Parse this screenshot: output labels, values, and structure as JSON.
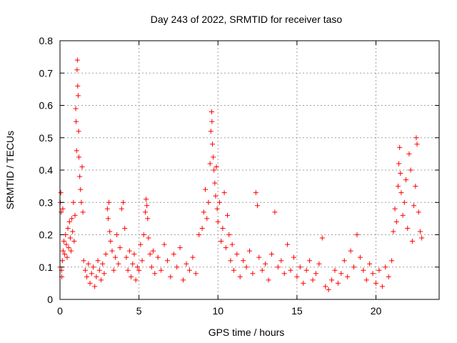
{
  "chart_data": {
    "type": "scatter",
    "title": "Day 243 of 2022, SRMTID for receiver taso",
    "xlabel": "GPS time / hours",
    "ylabel": "SRMTID / TECUs",
    "xlim": [
      0,
      24
    ],
    "ylim": [
      0,
      0.8
    ],
    "xticks": [
      0,
      5,
      10,
      15,
      20
    ],
    "yticks": [
      0,
      0.1,
      0.2,
      0.3,
      0.4,
      0.5,
      0.6,
      0.7,
      0.8
    ],
    "xtick_labels": [
      "0",
      "5",
      "10",
      "15",
      "20"
    ],
    "ytick_labels": [
      "0",
      "0.1",
      "0.2",
      "0.3",
      "0.4",
      "0.5",
      "0.6",
      "0.7",
      "0.8"
    ],
    "grid": true,
    "marker": "+",
    "marker_color": "#ff0000",
    "series": [
      {
        "name": "SRMTID",
        "points": [
          [
            0.0,
            0.1
          ],
          [
            0.02,
            0.3
          ],
          [
            0.05,
            0.33
          ],
          [
            0.08,
            0.27
          ],
          [
            0.1,
            0.09
          ],
          [
            0.12,
            0.07
          ],
          [
            0.15,
            0.12
          ],
          [
            0.18,
            0.28
          ],
          [
            0.2,
            0.15
          ],
          [
            0.25,
            0.18
          ],
          [
            0.3,
            0.14
          ],
          [
            0.35,
            0.2
          ],
          [
            0.4,
            0.17
          ],
          [
            0.45,
            0.13
          ],
          [
            0.5,
            0.22
          ],
          [
            0.55,
            0.16
          ],
          [
            0.6,
            0.24
          ],
          [
            0.65,
            0.19
          ],
          [
            0.7,
            0.15
          ],
          [
            0.75,
            0.25
          ],
          [
            0.8,
            0.21
          ],
          [
            0.85,
            0.3
          ],
          [
            0.9,
            0.18
          ],
          [
            0.95,
            0.26
          ],
          [
            1.0,
            0.59
          ],
          [
            1.02,
            0.55
          ],
          [
            1.05,
            0.46
          ],
          [
            1.08,
            0.71
          ],
          [
            1.1,
            0.74
          ],
          [
            1.12,
            0.66
          ],
          [
            1.15,
            0.63
          ],
          [
            1.18,
            0.52
          ],
          [
            1.2,
            0.44
          ],
          [
            1.25,
            0.38
          ],
          [
            1.3,
            0.34
          ],
          [
            1.35,
            0.3
          ],
          [
            1.4,
            0.41
          ],
          [
            1.45,
            0.27
          ],
          [
            1.5,
            0.12
          ],
          [
            1.6,
            0.09
          ],
          [
            1.7,
            0.07
          ],
          [
            1.8,
            0.11
          ],
          [
            1.9,
            0.05
          ],
          [
            2.0,
            0.08
          ],
          [
            2.1,
            0.1
          ],
          [
            2.2,
            0.04
          ],
          [
            2.3,
            0.07
          ],
          [
            2.4,
            0.12
          ],
          [
            2.5,
            0.09
          ],
          [
            2.6,
            0.06
          ],
          [
            2.7,
            0.11
          ],
          [
            2.8,
            0.08
          ],
          [
            2.9,
            0.14
          ],
          [
            3.0,
            0.28
          ],
          [
            3.05,
            0.25
          ],
          [
            3.1,
            0.3
          ],
          [
            3.15,
            0.21
          ],
          [
            3.2,
            0.18
          ],
          [
            3.3,
            0.15
          ],
          [
            3.4,
            0.09
          ],
          [
            3.5,
            0.13
          ],
          [
            3.6,
            0.2
          ],
          [
            3.7,
            0.11
          ],
          [
            3.8,
            0.16
          ],
          [
            3.9,
            0.28
          ],
          [
            4.0,
            0.3
          ],
          [
            4.1,
            0.22
          ],
          [
            4.2,
            0.13
          ],
          [
            4.3,
            0.09
          ],
          [
            4.4,
            0.15
          ],
          [
            4.5,
            0.07
          ],
          [
            4.6,
            0.11
          ],
          [
            4.7,
            0.14
          ],
          [
            4.8,
            0.06
          ],
          [
            4.9,
            0.1
          ],
          [
            5.0,
            0.09
          ],
          [
            5.1,
            0.17
          ],
          [
            5.2,
            0.12
          ],
          [
            5.3,
            0.2
          ],
          [
            5.4,
            0.27
          ],
          [
            5.45,
            0.31
          ],
          [
            5.5,
            0.29
          ],
          [
            5.55,
            0.25
          ],
          [
            5.6,
            0.19
          ],
          [
            5.7,
            0.14
          ],
          [
            5.8,
            0.1
          ],
          [
            5.9,
            0.15
          ],
          [
            6.0,
            0.08
          ],
          [
            6.2,
            0.13
          ],
          [
            6.4,
            0.09
          ],
          [
            6.6,
            0.17
          ],
          [
            6.8,
            0.12
          ],
          [
            7.0,
            0.07
          ],
          [
            7.2,
            0.14
          ],
          [
            7.4,
            0.1
          ],
          [
            7.6,
            0.16
          ],
          [
            7.8,
            0.06
          ],
          [
            8.0,
            0.11
          ],
          [
            8.2,
            0.09
          ],
          [
            8.4,
            0.13
          ],
          [
            8.6,
            0.08
          ],
          [
            8.8,
            0.2
          ],
          [
            9.0,
            0.22
          ],
          [
            9.1,
            0.27
          ],
          [
            9.2,
            0.34
          ],
          [
            9.3,
            0.25
          ],
          [
            9.4,
            0.3
          ],
          [
            9.5,
            0.42
          ],
          [
            9.55,
            0.52
          ],
          [
            9.6,
            0.58
          ],
          [
            9.62,
            0.55
          ],
          [
            9.65,
            0.48
          ],
          [
            9.7,
            0.44
          ],
          [
            9.75,
            0.4
          ],
          [
            9.8,
            0.36
          ],
          [
            9.85,
            0.32
          ],
          [
            9.9,
            0.41
          ],
          [
            9.95,
            0.28
          ],
          [
            10.0,
            0.24
          ],
          [
            10.1,
            0.3
          ],
          [
            10.2,
            0.18
          ],
          [
            10.3,
            0.22
          ],
          [
            10.4,
            0.33
          ],
          [
            10.5,
            0.16
          ],
          [
            10.6,
            0.26
          ],
          [
            10.7,
            0.2
          ],
          [
            10.8,
            0.12
          ],
          [
            10.9,
            0.17
          ],
          [
            11.0,
            0.09
          ],
          [
            11.2,
            0.14
          ],
          [
            11.4,
            0.07
          ],
          [
            11.6,
            0.12
          ],
          [
            11.8,
            0.1
          ],
          [
            12.0,
            0.15
          ],
          [
            12.2,
            0.08
          ],
          [
            12.4,
            0.33
          ],
          [
            12.5,
            0.29
          ],
          [
            12.6,
            0.13
          ],
          [
            12.8,
            0.09
          ],
          [
            13.0,
            0.11
          ],
          [
            13.2,
            0.06
          ],
          [
            13.4,
            0.14
          ],
          [
            13.6,
            0.27
          ],
          [
            13.8,
            0.1
          ],
          [
            14.0,
            0.12
          ],
          [
            14.2,
            0.08
          ],
          [
            14.4,
            0.17
          ],
          [
            14.6,
            0.09
          ],
          [
            14.8,
            0.13
          ],
          [
            15.0,
            0.07
          ],
          [
            15.2,
            0.1
          ],
          [
            15.4,
            0.05
          ],
          [
            15.6,
            0.09
          ],
          [
            15.8,
            0.12
          ],
          [
            16.0,
            0.06
          ],
          [
            16.2,
            0.08
          ],
          [
            16.4,
            0.11
          ],
          [
            16.6,
            0.19
          ],
          [
            16.8,
            0.04
          ],
          [
            17.0,
            0.03
          ],
          [
            17.2,
            0.06
          ],
          [
            17.4,
            0.09
          ],
          [
            17.6,
            0.05
          ],
          [
            17.8,
            0.08
          ],
          [
            18.0,
            0.12
          ],
          [
            18.2,
            0.07
          ],
          [
            18.4,
            0.15
          ],
          [
            18.6,
            0.1
          ],
          [
            18.8,
            0.2
          ],
          [
            19.0,
            0.13
          ],
          [
            19.2,
            0.09
          ],
          [
            19.4,
            0.06
          ],
          [
            19.6,
            0.11
          ],
          [
            19.8,
            0.08
          ],
          [
            20.0,
            0.05
          ],
          [
            20.2,
            0.09
          ],
          [
            20.4,
            0.04
          ],
          [
            20.6,
            0.1
          ],
          [
            20.8,
            0.07
          ],
          [
            21.0,
            0.12
          ],
          [
            21.1,
            0.21
          ],
          [
            21.2,
            0.28
          ],
          [
            21.3,
            0.24
          ],
          [
            21.4,
            0.35
          ],
          [
            21.45,
            0.42
          ],
          [
            21.5,
            0.47
          ],
          [
            21.55,
            0.39
          ],
          [
            21.6,
            0.33
          ],
          [
            21.7,
            0.26
          ],
          [
            21.8,
            0.3
          ],
          [
            21.9,
            0.37
          ],
          [
            22.0,
            0.22
          ],
          [
            22.1,
            0.45
          ],
          [
            22.2,
            0.4
          ],
          [
            22.3,
            0.18
          ],
          [
            22.4,
            0.29
          ],
          [
            22.5,
            0.35
          ],
          [
            22.55,
            0.5
          ],
          [
            22.6,
            0.48
          ],
          [
            22.7,
            0.27
          ],
          [
            22.8,
            0.21
          ],
          [
            22.9,
            0.19
          ]
        ]
      }
    ]
  }
}
